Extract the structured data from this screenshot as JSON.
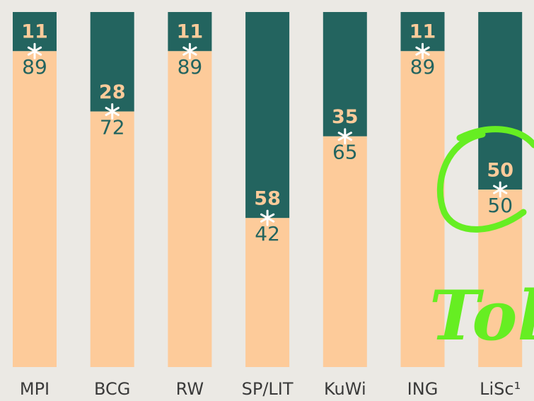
{
  "chart_data": {
    "type": "stacked-bar",
    "categories": [
      "MPI",
      "BCG",
      "RW",
      "SP/LIT",
      "KuWi",
      "ING",
      "LiSc¹"
    ],
    "series": [
      {
        "color": "#fdcb9a",
        "label_color": "#23645f",
        "values": [
          89,
          72,
          89,
          42,
          65,
          89,
          50
        ]
      },
      {
        "color": "#23645f",
        "label_color": "#fdcb9a",
        "values": [
          11,
          28,
          11,
          58,
          35,
          11,
          50
        ]
      }
    ],
    "ylim": [
      0,
      100
    ],
    "annotation": "Tol"
  }
}
